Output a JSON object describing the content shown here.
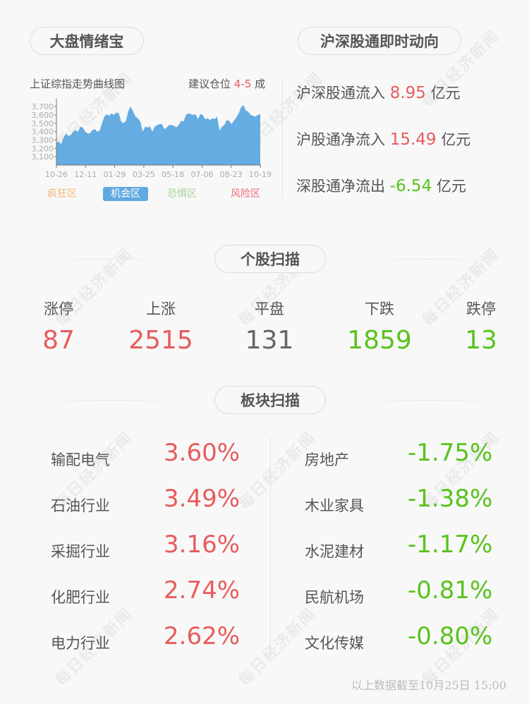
{
  "watermark": "每日经济新闻",
  "left": {
    "title": "大盘情绪宝",
    "chart_label": "上证综指走势曲线图",
    "advice_prefix": "建议仓位",
    "advice_value": "4-5",
    "advice_suffix": "成",
    "zones": [
      {
        "label": "疯狂区",
        "color": "#f5b77a",
        "active": false
      },
      {
        "label": "机会区",
        "color": "#5fa9e0",
        "active": true
      },
      {
        "label": "恐惧区",
        "color": "#a9d39a",
        "active": false
      },
      {
        "label": "风险区",
        "color": "#ee6b7a",
        "active": false
      }
    ]
  },
  "chart_data": {
    "type": "area",
    "title": "",
    "color": "#64ace1",
    "ylim": [
      3000,
      3760
    ],
    "yticks": [
      "3,700",
      "3,600",
      "3,500",
      "3,400",
      "3,300",
      "3,200",
      "3,100"
    ],
    "ytick_values": [
      3700,
      3600,
      3500,
      3400,
      3300,
      3200,
      3100
    ],
    "xticks": [
      "10-26",
      "12-11",
      "01-29",
      "03-25",
      "05-18",
      "07-06",
      "08-23",
      "10-19"
    ],
    "values": [
      3270,
      3280,
      3250,
      3330,
      3380,
      3350,
      3360,
      3400,
      3420,
      3400,
      3460,
      3450,
      3400,
      3380,
      3380,
      3420,
      3430,
      3400,
      3410,
      3500,
      3580,
      3610,
      3590,
      3620,
      3600,
      3630,
      3620,
      3520,
      3500,
      3530,
      3650,
      3700,
      3640,
      3580,
      3560,
      3520,
      3400,
      3460,
      3450,
      3460,
      3400,
      3460,
      3480,
      3490,
      3490,
      3430,
      3450,
      3480,
      3480,
      3470,
      3450,
      3480,
      3530,
      3520,
      3600,
      3620,
      3610,
      3600,
      3610,
      3550,
      3610,
      3600,
      3550,
      3560,
      3540,
      3560,
      3550,
      3580,
      3410,
      3460,
      3480,
      3540,
      3530,
      3490,
      3530,
      3570,
      3620,
      3690,
      3720,
      3650,
      3640,
      3600,
      3590,
      3580,
      3600,
      3610
    ]
  },
  "right": {
    "title": "沪深股通即时动向",
    "flows": [
      {
        "label": "沪深股通流入",
        "value": "8.95",
        "unit": "亿元",
        "color": "red"
      },
      {
        "label": "沪股通净流入",
        "value": "15.49",
        "unit": "亿元",
        "color": "red"
      },
      {
        "label": "深股通净流出",
        "value": "-6.54",
        "unit": "亿元",
        "color": "green"
      }
    ]
  },
  "stocks": {
    "title": "个股扫描",
    "items": [
      {
        "label": "涨停",
        "value": "87",
        "color": "red"
      },
      {
        "label": "上涨",
        "value": "2515",
        "color": "red"
      },
      {
        "label": "平盘",
        "value": "131",
        "color": "gray"
      },
      {
        "label": "下跌",
        "value": "1859",
        "color": "green"
      },
      {
        "label": "跌停",
        "value": "13",
        "color": "green"
      }
    ]
  },
  "sectors": {
    "title": "板块扫描",
    "up": [
      {
        "name": "输配电气",
        "pct": "3.60%"
      },
      {
        "name": "石油行业",
        "pct": "3.49%"
      },
      {
        "name": "采掘行业",
        "pct": "3.16%"
      },
      {
        "name": "化肥行业",
        "pct": "2.74%"
      },
      {
        "name": "电力行业",
        "pct": "2.62%"
      }
    ],
    "down": [
      {
        "name": "房地产",
        "pct": "-1.75%"
      },
      {
        "name": "木业家具",
        "pct": "-1.38%"
      },
      {
        "name": "水泥建材",
        "pct": "-1.17%"
      },
      {
        "name": "民航机场",
        "pct": "-0.81%"
      },
      {
        "name": "文化传媒",
        "pct": "-0.80%"
      }
    ]
  },
  "footer": "以上数据截至10月25日 15:00",
  "colors": {
    "red": "#e85c5c",
    "green": "#58c31b",
    "gray": "#666666"
  }
}
